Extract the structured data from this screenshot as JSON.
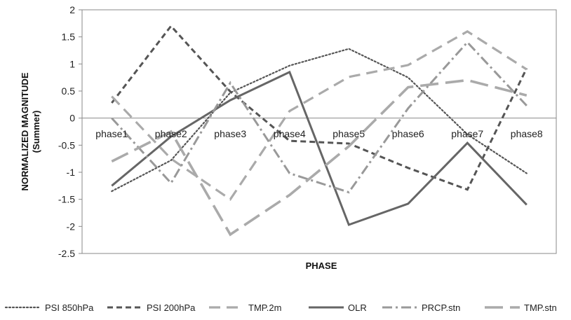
{
  "chart_data": {
    "type": "line",
    "title": "",
    "xlabel": "PHASE",
    "ylabel_lines": [
      "NORMALIZED MAGNITUDE",
      "(Summer)"
    ],
    "categories": [
      "phase1",
      "phase2",
      "phase3",
      "phase4",
      "phase5",
      "phase6",
      "phase7",
      "phase8"
    ],
    "ylim": [
      -2.5,
      2
    ],
    "yticks": [
      2,
      1.5,
      1,
      0.5,
      0,
      -0.5,
      -1,
      -1.5,
      -2,
      -2.5
    ],
    "ytick_labels": [
      "2",
      "1.5",
      "1",
      "0.5",
      "0",
      "-0.5",
      "-1",
      "-1.5",
      "-2",
      "-2.5"
    ],
    "grid": false,
    "legend_position": "bottom",
    "series": [
      {
        "name": "PSI 850hPa",
        "style": "dotted",
        "color": "#555555",
        "values": [
          -1.35,
          -0.78,
          0.47,
          0.97,
          1.28,
          0.75,
          -0.3,
          -1.02
        ]
      },
      {
        "name": "PSI 200hPa",
        "style": "dashed",
        "color": "#555555",
        "values": [
          0.28,
          1.7,
          0.49,
          -0.42,
          -0.47,
          -0.92,
          -1.32,
          0.92
        ]
      },
      {
        "name": "TMP.2m",
        "style": "long-dash",
        "color": "#aaaaaa",
        "values": [
          0.4,
          -0.75,
          -1.5,
          0.13,
          0.76,
          0.98,
          1.6,
          0.9
        ]
      },
      {
        "name": "OLR",
        "style": "solid",
        "color": "#666666",
        "values": [
          -1.25,
          -0.34,
          0.33,
          0.85,
          -1.97,
          -1.58,
          -0.46,
          -1.6
        ]
      },
      {
        "name": "PRCP.stn",
        "style": "dash-dot",
        "color": "#999999",
        "values": [
          0.0,
          -1.2,
          0.65,
          -1.02,
          -1.37,
          0.18,
          1.4,
          0.23
        ]
      },
      {
        "name": "TMP.stn",
        "style": "long-long-dash",
        "color": "#aaaaaa",
        "values": [
          -0.8,
          -0.25,
          -2.15,
          -1.42,
          -0.52,
          0.57,
          0.7,
          0.42
        ]
      }
    ]
  }
}
